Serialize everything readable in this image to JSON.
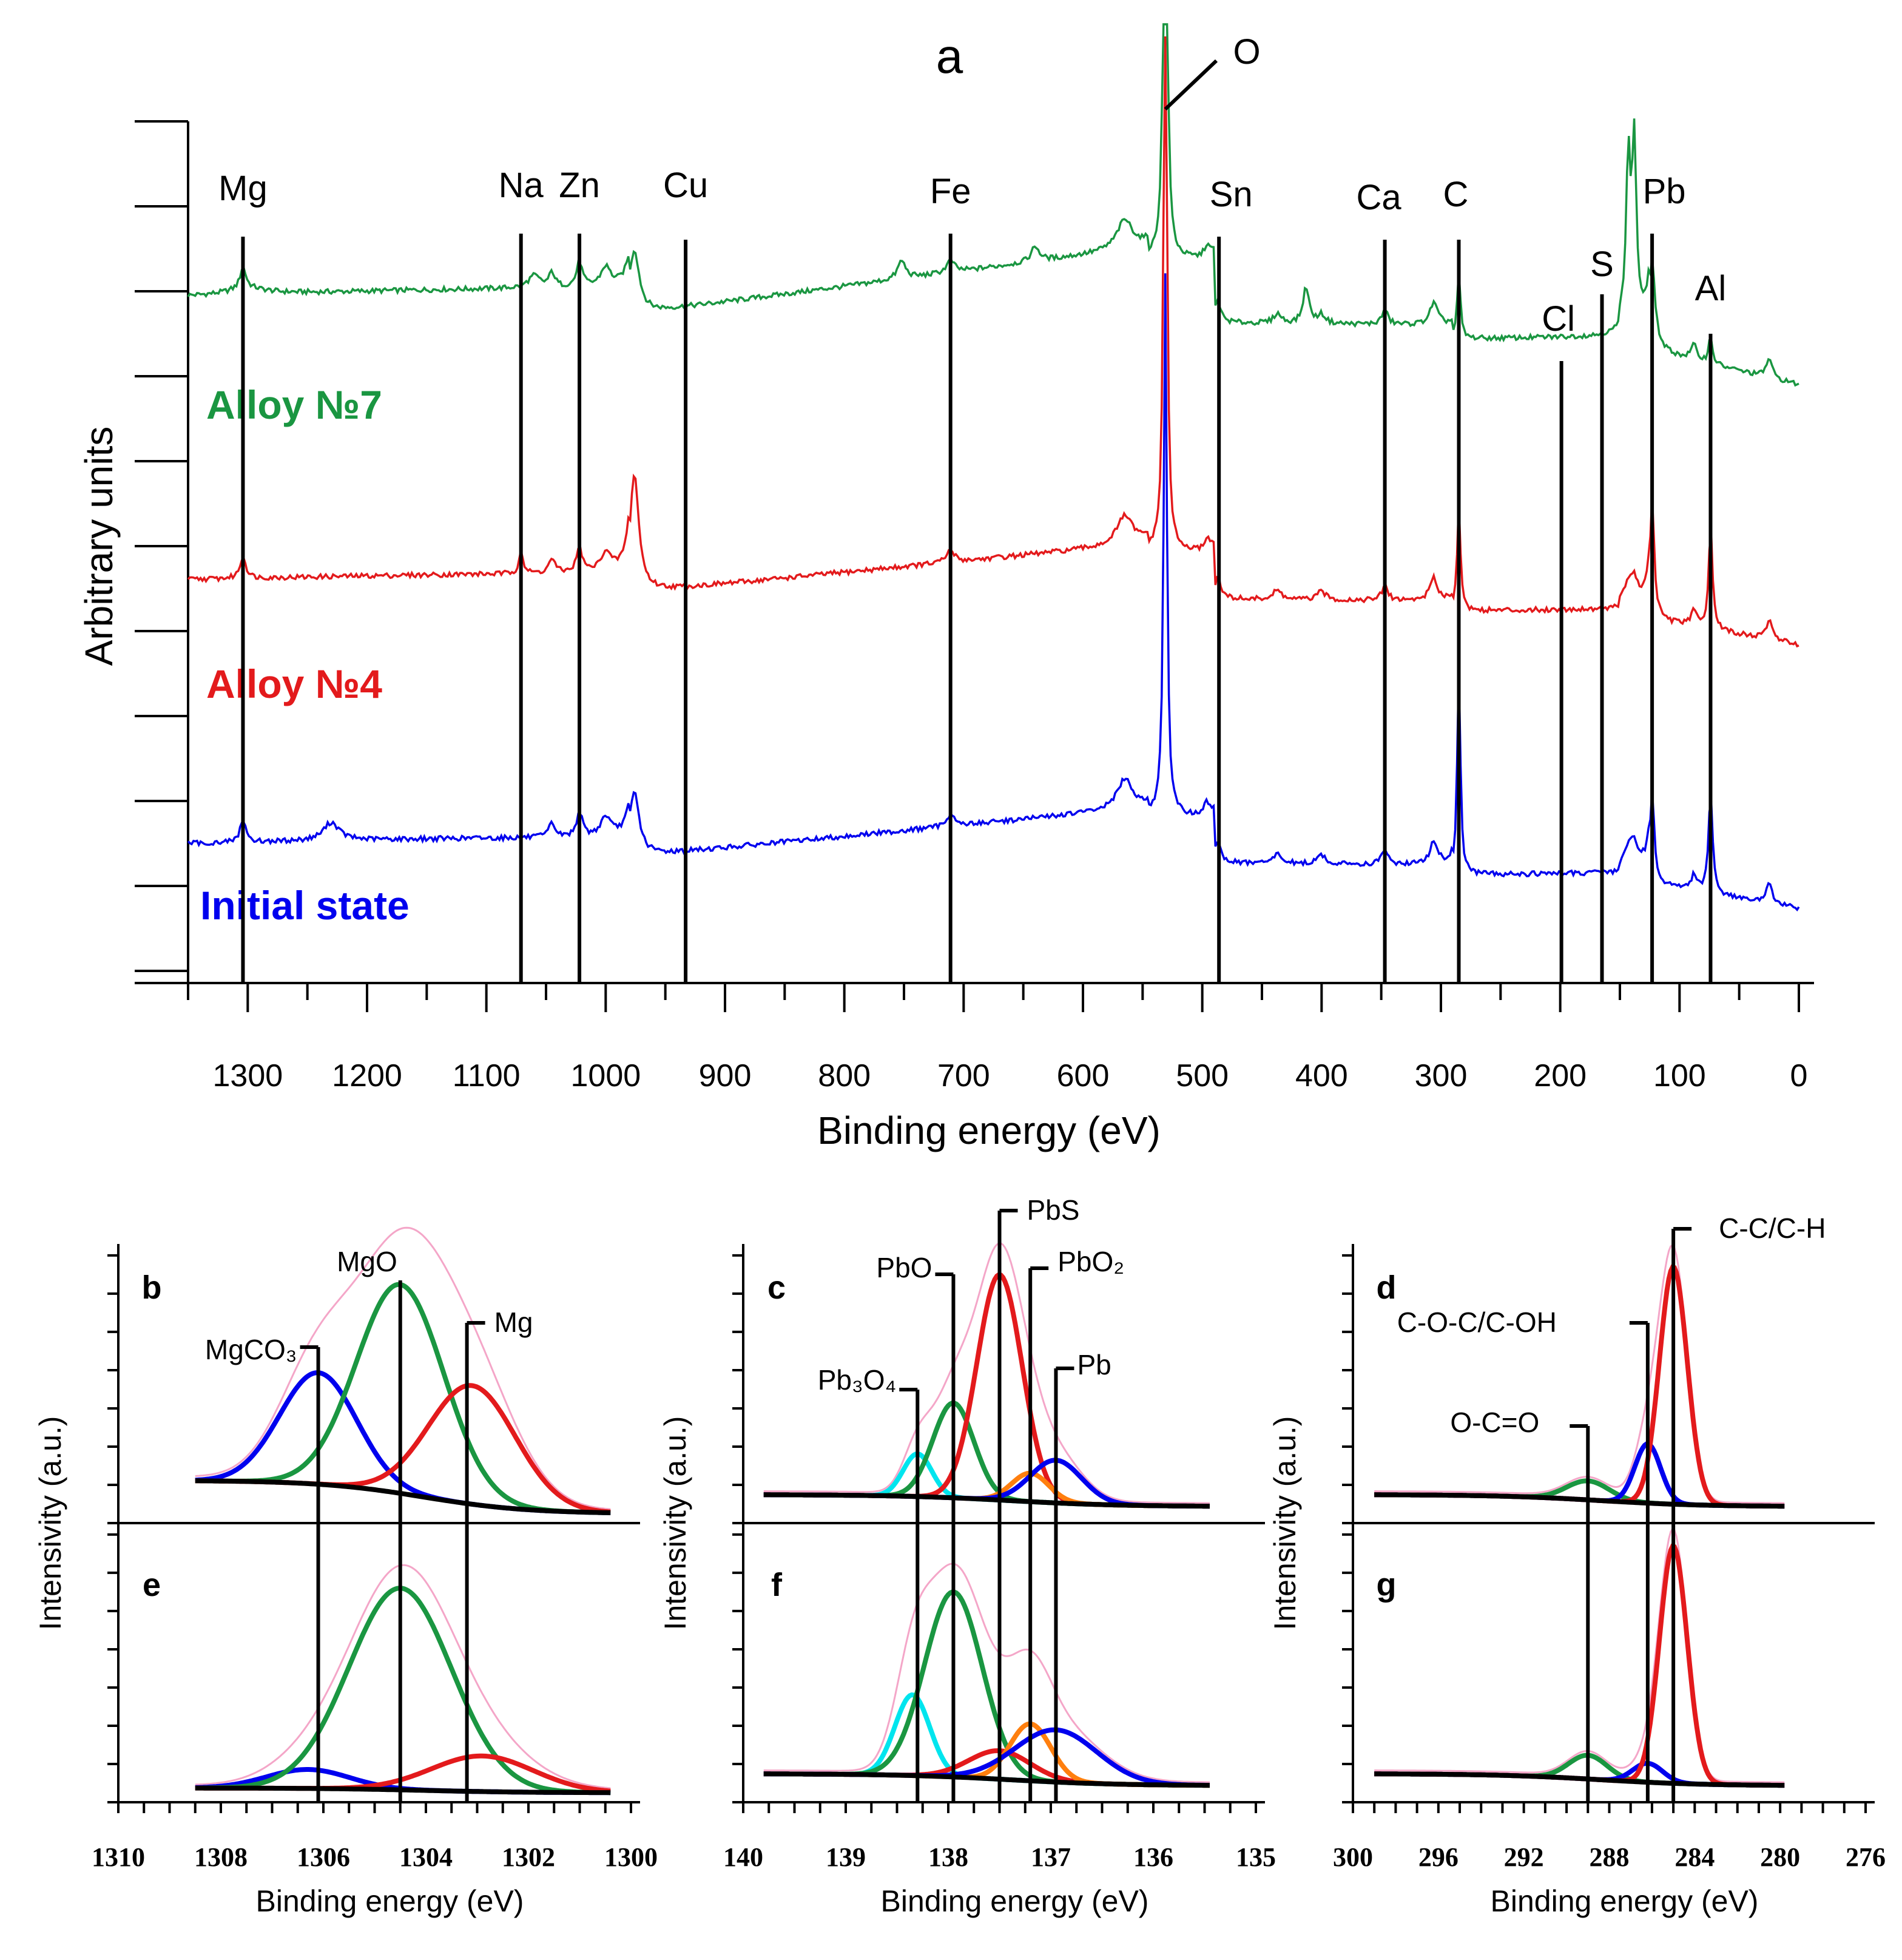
{
  "chart_data": [
    {
      "type": "line",
      "panel": "a",
      "title": "a",
      "xlabel": "Binding energy (eV)",
      "ylabel": "Arbitrary units",
      "xlim": [
        1350,
        0
      ],
      "x_ticks": [
        1300,
        1200,
        1100,
        1000,
        900,
        800,
        700,
        600,
        500,
        400,
        300,
        200,
        100,
        0
      ],
      "series": [
        {
          "name": "Alloy №7",
          "color": "#1a9641"
        },
        {
          "name": "Alloy №4",
          "color": "#e31a1c"
        },
        {
          "name": "Initial state",
          "color": "#0000ee"
        }
      ],
      "markers": [
        {
          "label": "Mg",
          "x": 1304
        },
        {
          "label": "Na",
          "x": 1071
        },
        {
          "label": "Zn",
          "x": 1022
        },
        {
          "label": "Cu",
          "x": 933
        },
        {
          "label": "Fe",
          "x": 711
        },
        {
          "label": "O",
          "x": 531
        },
        {
          "label": "Sn",
          "x": 486
        },
        {
          "label": "Ca",
          "x": 347
        },
        {
          "label": "C",
          "x": 285
        },
        {
          "label": "Cl",
          "x": 199
        },
        {
          "label": "S",
          "x": 165
        },
        {
          "label": "Pb",
          "x": 123
        },
        {
          "label": "Al",
          "x": 74
        }
      ]
    },
    {
      "type": "line",
      "panels": [
        "b",
        "e"
      ],
      "xlabel": "Binding energy (eV)",
      "ylabel": "Intensivity (a.u.)",
      "xlim": [
        1310,
        1300
      ],
      "x_ticks": [
        1310,
        1308,
        1306,
        1304,
        1302,
        1300
      ],
      "components": [
        {
          "label": "MgCO₃",
          "x": 1306.1,
          "color": "#0000ee"
        },
        {
          "label": "MgO",
          "x": 1304.5,
          "color": "#1a9641"
        },
        {
          "label": "Mg",
          "x": 1303.2,
          "color": "#e31a1c"
        }
      ]
    },
    {
      "type": "line",
      "panels": [
        "c",
        "f"
      ],
      "xlabel": "Binding energy (eV)",
      "ylabel": "Intensivity (a.u.)",
      "xlim": [
        140,
        135
      ],
      "x_ticks": [
        140,
        139,
        138,
        137,
        136,
        135
      ],
      "components": [
        {
          "label": "Pb₃O₄",
          "x": 138.3,
          "color": "#00e5ee"
        },
        {
          "label": "PbO",
          "x": 137.95,
          "color": "#1a9641"
        },
        {
          "label": "PbS",
          "x": 137.5,
          "color": "#e31a1c"
        },
        {
          "label": "PbO₂",
          "x": 137.2,
          "color": "#ff7f0e"
        },
        {
          "label": "Pb",
          "x": 136.95,
          "color": "#0000ee"
        }
      ]
    },
    {
      "type": "line",
      "panels": [
        "d",
        "g"
      ],
      "xlabel": "Binding energy (eV)",
      "ylabel": "Intensivity (a.u.)",
      "xlim": [
        300,
        276
      ],
      "x_ticks": [
        300,
        296,
        292,
        288,
        284,
        280,
        276
      ],
      "components": [
        {
          "label": "O-C=O",
          "x": 289.0,
          "color": "#1a9641"
        },
        {
          "label": "C-O-C/C-OH",
          "x": 286.2,
          "color": "#0000ee"
        },
        {
          "label": "C-C/C-H",
          "x": 285.0,
          "color": "#e31a1c"
        }
      ]
    }
  ]
}
